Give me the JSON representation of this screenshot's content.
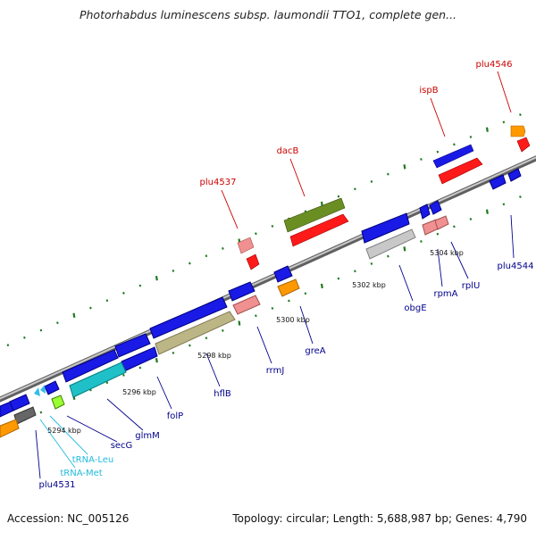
{
  "title": "Photorhabdus luminescens subsp. laumondii TTO1, complete gen...",
  "footer": {
    "accession": "Accession: NC_005126",
    "summary": "Topology: circular; Length: 5,688,987 bp; Genes: 4,790"
  },
  "colors": {
    "backbone": "#9a9a9a",
    "tick": "#1f7a1f",
    "cds_plain": "#0a0ad8",
    "red_label": "#cc0000",
    "blue_label": "#00008b",
    "cyan_label": "#22bbdd"
  },
  "kbp_labels": [
    "5294 kbp",
    "5296 kbp",
    "5298 kbp",
    "5300 kbp",
    "5302 kbp",
    "5304 kbp"
  ],
  "gene_labels": [
    {
      "text": "plu4546",
      "color": "red"
    },
    {
      "text": "ispB",
      "color": "red"
    },
    {
      "text": "dacB",
      "color": "red"
    },
    {
      "text": "plu4537",
      "color": "red"
    },
    {
      "text": "plu4544",
      "color": "blue"
    },
    {
      "text": "rplU",
      "color": "blue"
    },
    {
      "text": "rpmA",
      "color": "blue"
    },
    {
      "text": "obgE",
      "color": "blue"
    },
    {
      "text": "greA",
      "color": "blue"
    },
    {
      "text": "rrmJ",
      "color": "blue"
    },
    {
      "text": "hflB",
      "color": "blue"
    },
    {
      "text": "folP",
      "color": "blue"
    },
    {
      "text": "glmM",
      "color": "blue"
    },
    {
      "text": "secG",
      "color": "blue"
    },
    {
      "text": "tRNA-Leu",
      "color": "cyan"
    },
    {
      "text": "tRNA-Met",
      "color": "cyan"
    },
    {
      "text": "plu4531",
      "color": "blue"
    }
  ]
}
